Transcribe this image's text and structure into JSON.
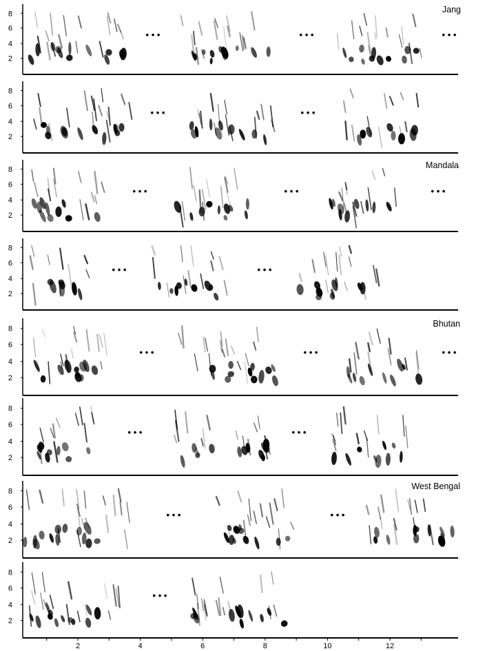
{
  "panels": [
    {
      "label": "Jang",
      "y_ticks": [
        "2",
        "4",
        "6",
        "8"
      ],
      "ellipsis": [
        "• • •",
        "• • •",
        "• • •"
      ]
    },
    {
      "label": "",
      "y_ticks": [
        "2",
        "4",
        "6",
        "8"
      ],
      "ellipsis": [
        "• • •",
        "• • •"
      ]
    },
    {
      "label": "Mandala",
      "y_ticks": [
        "2",
        "4",
        "6",
        "8"
      ],
      "ellipsis": [
        "• • •",
        "• • •",
        "• • •"
      ]
    },
    {
      "label": "",
      "y_ticks": [
        "2",
        "4",
        "6",
        "8"
      ],
      "ellipsis": [
        "• • •",
        "• • •"
      ]
    },
    {
      "label": "Bhutan",
      "y_ticks": [
        "2",
        "4",
        "6",
        "8"
      ],
      "ellipsis": [
        "• • •",
        "• • •",
        "• • •"
      ]
    },
    {
      "label": "",
      "y_ticks": [
        "2",
        "4",
        "6",
        "8"
      ],
      "ellipsis": [
        "• • •",
        "• • •"
      ]
    },
    {
      "label": "West Bengal",
      "y_ticks": [
        "2",
        "4",
        "6",
        "8"
      ],
      "ellipsis": [
        "• • •",
        "• • •"
      ]
    },
    {
      "label": "",
      "y_ticks": [
        "2",
        "4",
        "6",
        "8"
      ],
      "ellipsis": [
        "• • •"
      ]
    }
  ],
  "x_axis": {
    "ticks": [
      "2",
      "4",
      "6",
      "8",
      "10",
      "12"
    ]
  },
  "colors": {
    "ink": "#000000",
    "background": "#ffffff"
  }
}
